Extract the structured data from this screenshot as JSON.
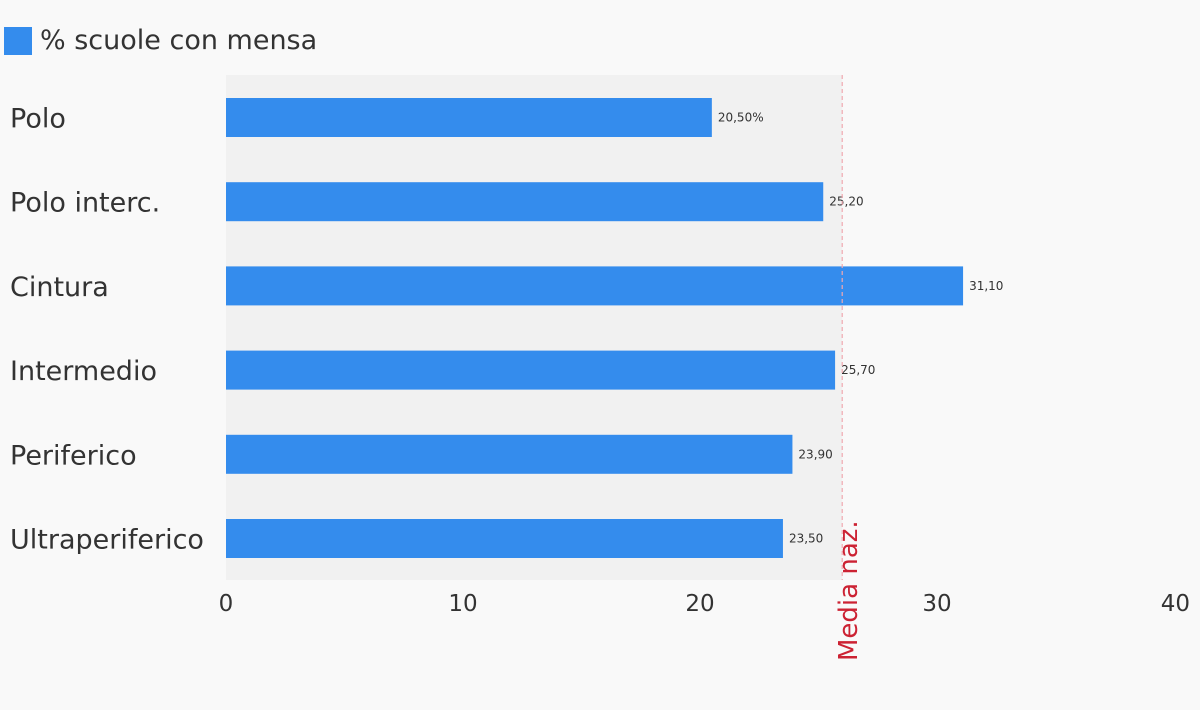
{
  "legend": {
    "label": "% scuole con mensa",
    "color": "#348ced"
  },
  "chart_data": {
    "type": "bar",
    "orientation": "horizontal",
    "categories": [
      "Polo",
      "Polo interc.",
      "Cintura",
      "Intermedio",
      "Periferico",
      "Ultraperiferico"
    ],
    "series": [
      {
        "name": "% scuole con mensa",
        "values": [
          20.5,
          25.2,
          31.1,
          25.7,
          23.9,
          23.5
        ]
      }
    ],
    "value_labels": [
      "20,50%",
      "25,20",
      "31,10",
      "25,70",
      "23,90",
      "23,50"
    ],
    "xlim": [
      0,
      40
    ],
    "x_ticks": [
      "0",
      "10",
      "20",
      "30",
      "40"
    ],
    "reference_line": {
      "label": "Media naz.",
      "value": 26,
      "color": "#cc2233"
    },
    "plot_background": "#f1f1f1",
    "grid": false,
    "legend_position": "top-left"
  }
}
